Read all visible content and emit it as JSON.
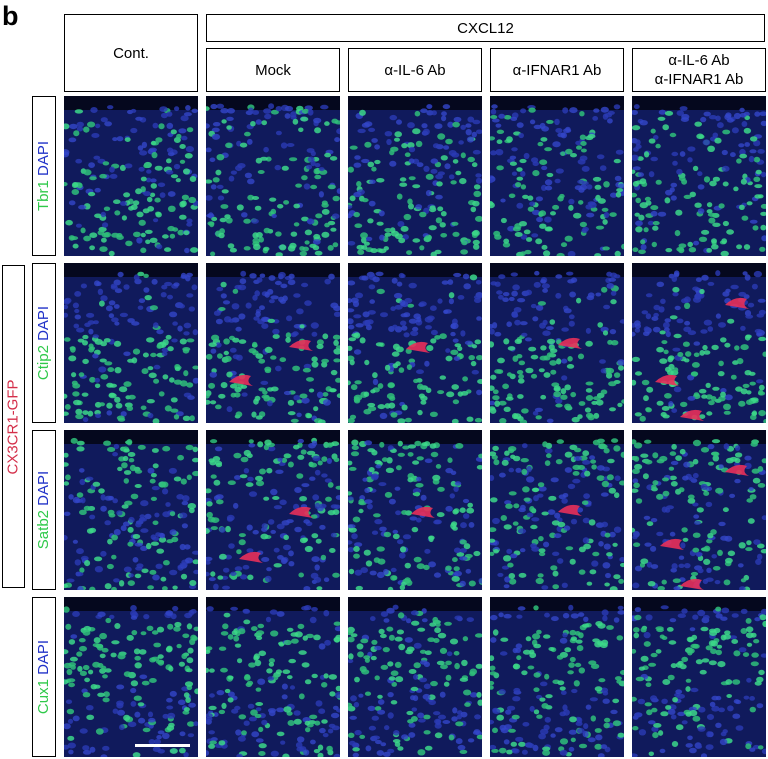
{
  "figure": {
    "panel_letter": "b",
    "column_group_label": "CXCL12",
    "columns": [
      {
        "lines": [
          "Cont."
        ]
      },
      {
        "lines": [
          "Mock"
        ]
      },
      {
        "lines": [
          "α-IL-6 Ab"
        ]
      },
      {
        "lines": [
          "α-IFNAR1 Ab"
        ]
      },
      {
        "lines": [
          "α-IL-6 Ab",
          "α-IFNAR1 Ab"
        ]
      }
    ],
    "rows": [
      {
        "marker": "Tbr1",
        "stain": "DAPI"
      },
      {
        "marker": "Ctip2",
        "stain": "DAPI"
      },
      {
        "marker": "Satb2",
        "stain": "DAPI"
      },
      {
        "marker": "Cux1",
        "stain": "DAPI"
      }
    ],
    "side_label": "CX3CR1-GFP",
    "colors": {
      "marker_green": "#2fc94a",
      "dapi_blue": "#2233c8",
      "gfp_red": "#d42f4a",
      "image_background": "#0d1650"
    }
  }
}
